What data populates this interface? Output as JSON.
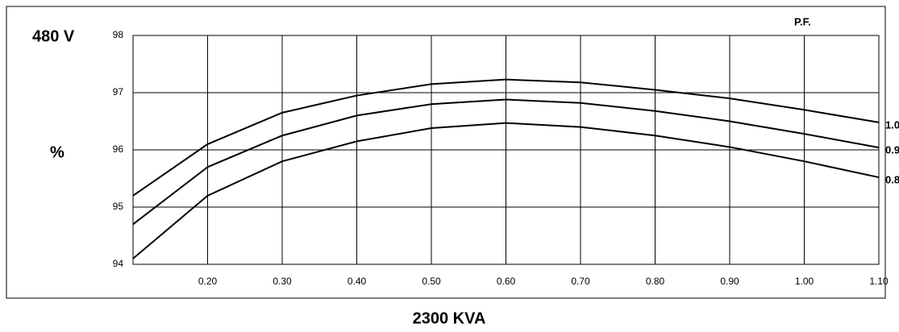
{
  "chart_data": {
    "type": "line",
    "title": "480 V",
    "subtitle": "2300 KVA",
    "y_label": "%",
    "legend_title": "P.F.",
    "x": [
      0.1,
      0.2,
      0.3,
      0.4,
      0.5,
      0.6,
      0.7,
      0.8,
      0.9,
      1.0,
      1.1
    ],
    "series": [
      {
        "name": "1.0",
        "color": "#000000",
        "values": [
          95.2,
          96.1,
          96.65,
          96.95,
          97.15,
          97.23,
          97.18,
          97.05,
          96.9,
          96.7,
          96.48
        ]
      },
      {
        "name": "0.9",
        "color": "#000000",
        "values": [
          94.7,
          95.7,
          96.25,
          96.6,
          96.8,
          96.88,
          96.82,
          96.68,
          96.5,
          96.28,
          96.04
        ]
      },
      {
        "name": "0.8",
        "color": "#000000",
        "values": [
          94.1,
          95.2,
          95.8,
          96.15,
          96.38,
          96.47,
          96.4,
          96.25,
          96.05,
          95.8,
          95.52
        ]
      }
    ],
    "xlim": [
      0.1,
      1.1
    ],
    "xticks": [
      {
        "value": 0.2,
        "label": "0.20"
      },
      {
        "value": 0.3,
        "label": "0.30"
      },
      {
        "value": 0.4,
        "label": "0.40"
      },
      {
        "value": 0.5,
        "label": "0.50"
      },
      {
        "value": 0.6,
        "label": "0.60"
      },
      {
        "value": 0.7,
        "label": "0.70"
      },
      {
        "value": 0.8,
        "label": "0.80"
      },
      {
        "value": 0.9,
        "label": "0.90"
      },
      {
        "value": 1.0,
        "label": "1.00"
      },
      {
        "value": 1.1,
        "label": "1.10"
      }
    ],
    "ylim": [
      94,
      98
    ],
    "yticks": [
      94,
      95,
      96,
      97,
      98
    ],
    "grid": true
  }
}
